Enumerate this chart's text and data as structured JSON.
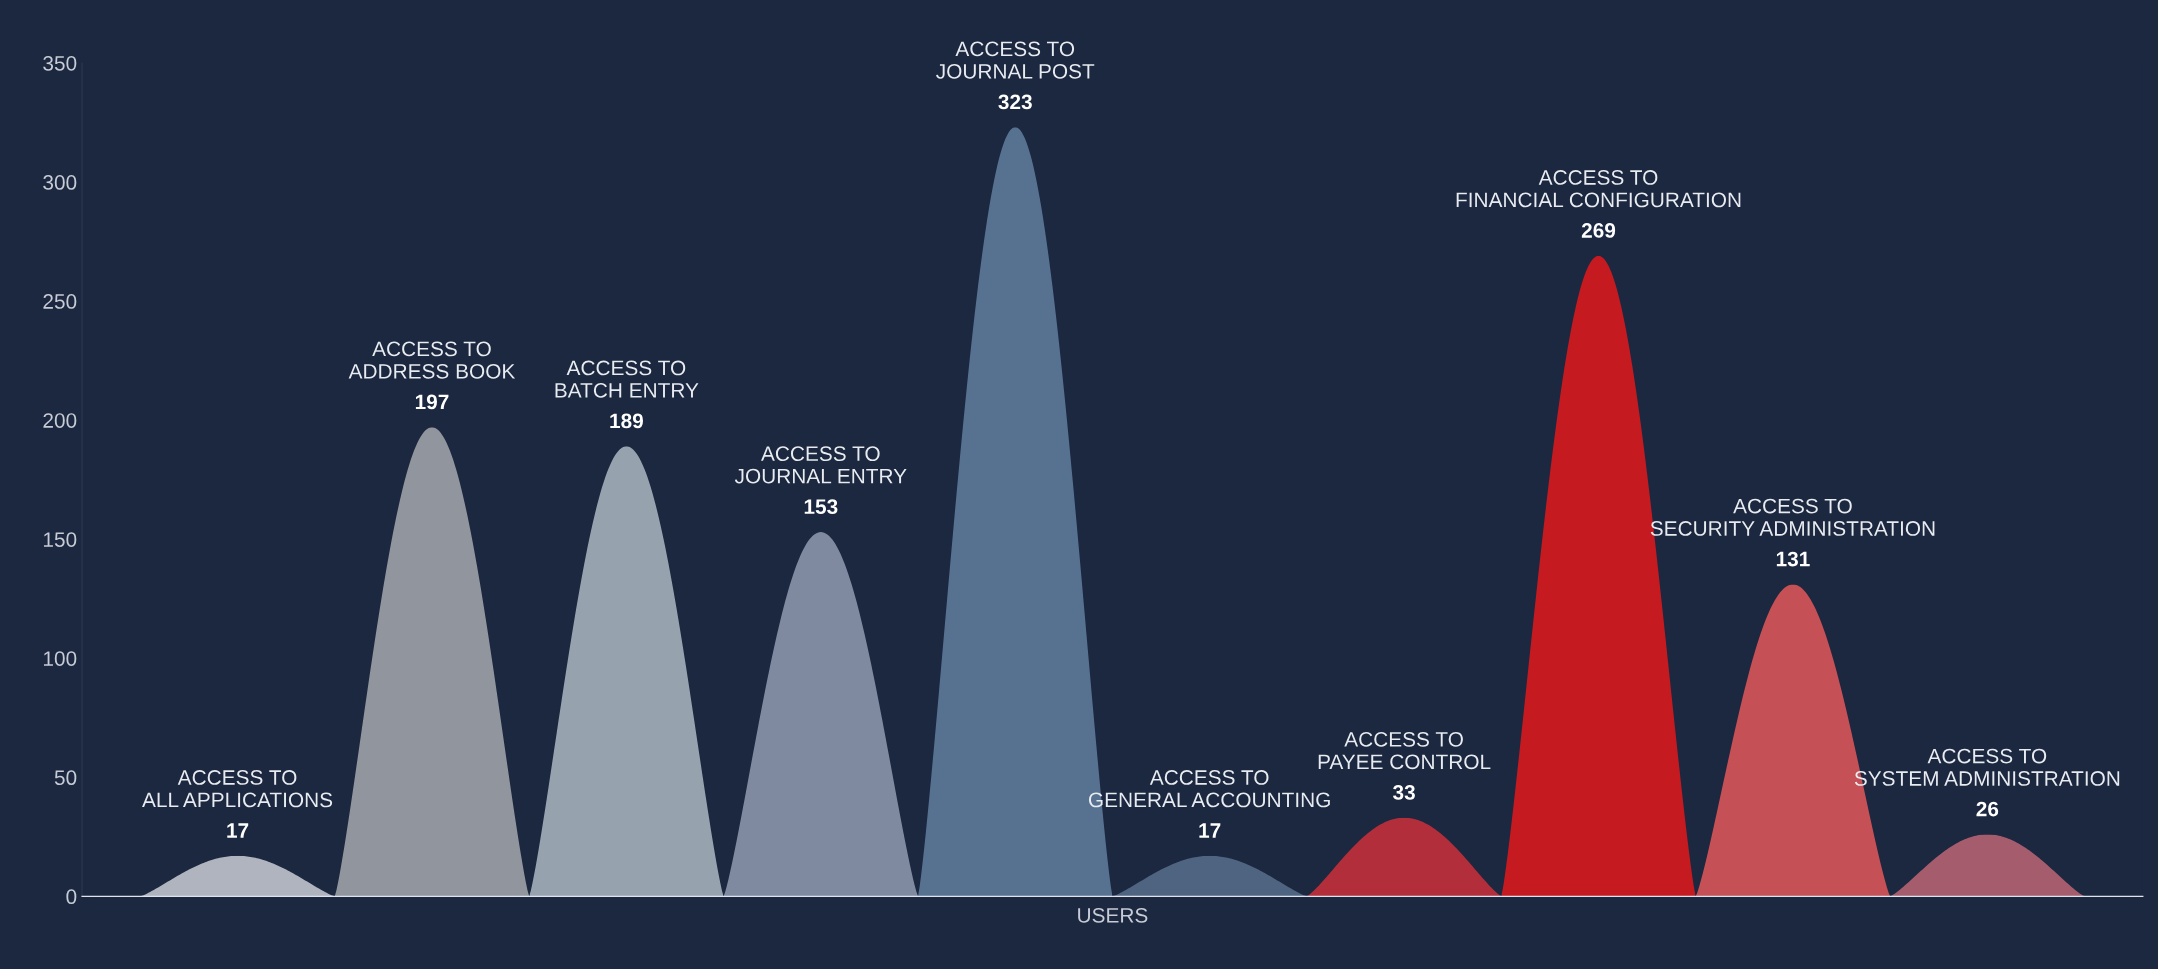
{
  "chart_data": {
    "type": "bar",
    "xlabel": "USERS",
    "categories": [
      "ACCESS TO\nALL APPLICATIONS",
      "ACCESS TO\nADDRESS BOOK",
      "ACCESS TO\nBATCH ENTRY",
      "ACCESS TO\nJOURNAL ENTRY",
      "ACCESS TO\nJOURNAL POST",
      "ACCESS TO\nGENERAL ACCOUNTING",
      "ACCESS TO\nPAYEE CONTROL",
      "ACCESS TO\nFINANCIAL CONFIGURATION",
      "ACCESS TO\nSECURITY ADMINISTRATION",
      "ACCESS TO\nSYSTEM ADMINISTRATION"
    ],
    "values": [
      17,
      197,
      189,
      153,
      323,
      17,
      33,
      269,
      131,
      26
    ],
    "colors": [
      "#d4d7de",
      "#aeb0b5",
      "#b6c0ca",
      "#98a3b8",
      "#6685a5",
      "#5c7391",
      "#d83038",
      "#f01818",
      "#f05a5a",
      "#c86a78"
    ],
    "ylim": [
      0,
      350
    ],
    "yticks": [
      0,
      50,
      100,
      150,
      200,
      250,
      300,
      350
    ],
    "data_labels": true,
    "grid": false,
    "legend": false
  }
}
